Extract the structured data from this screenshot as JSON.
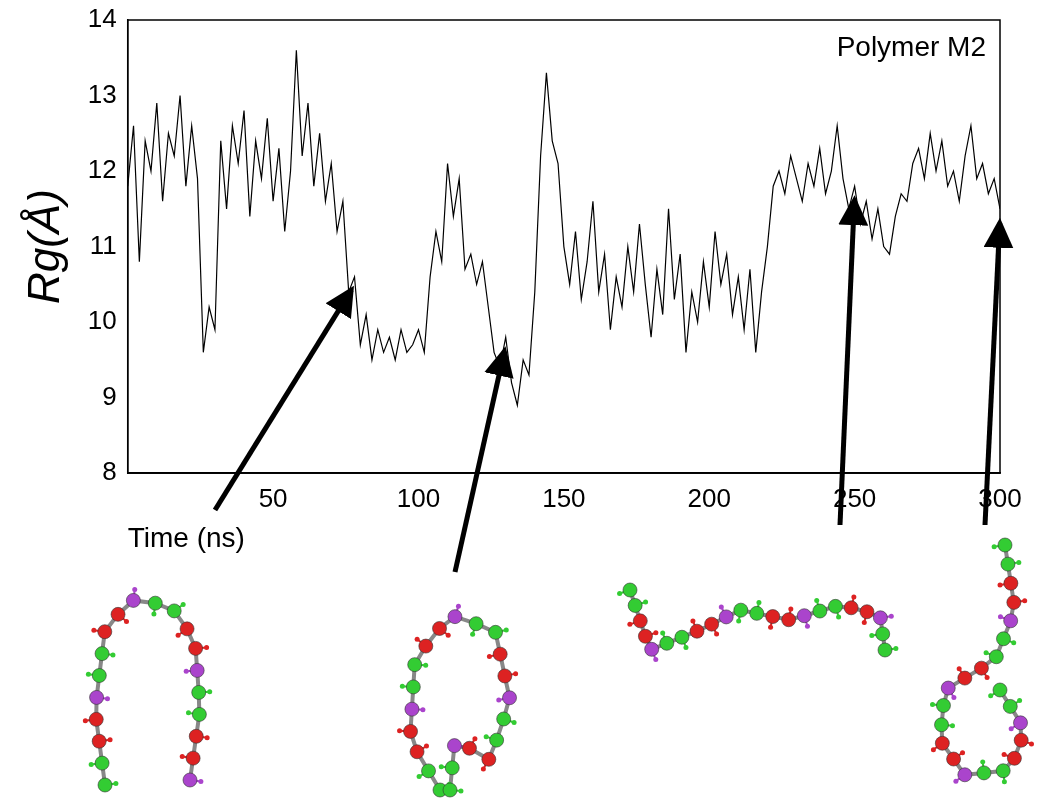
{
  "chart_data": {
    "type": "line",
    "annotation": "Polymer M2",
    "x_label": "Time (ns)",
    "y_label": "Rg(Å)",
    "color": "#000000",
    "grid": false,
    "xlim": [
      0,
      300
    ],
    "xticks": [
      50,
      100,
      150,
      200,
      250,
      300
    ],
    "ylim": [
      8,
      14
    ],
    "yticks": [
      8,
      9,
      10,
      11,
      12,
      13,
      14
    ],
    "x": [
      0,
      2,
      4,
      6,
      8,
      10,
      12,
      14,
      16,
      18,
      20,
      22,
      24,
      26,
      28,
      30,
      32,
      34,
      36,
      38,
      40,
      42,
      44,
      46,
      48,
      50,
      52,
      54,
      56,
      58,
      60,
      62,
      64,
      66,
      68,
      70,
      72,
      74,
      76,
      78,
      80,
      82,
      84,
      86,
      88,
      90,
      92,
      94,
      96,
      98,
      100,
      102,
      104,
      106,
      108,
      110,
      112,
      114,
      116,
      118,
      120,
      122,
      124,
      126,
      128,
      130,
      132,
      134,
      136,
      138,
      140,
      142,
      144,
      146,
      148,
      150,
      152,
      154,
      156,
      158,
      160,
      162,
      164,
      166,
      168,
      170,
      172,
      174,
      176,
      178,
      180,
      182,
      184,
      186,
      188,
      190,
      192,
      194,
      196,
      198,
      200,
      202,
      204,
      206,
      208,
      210,
      212,
      214,
      216,
      218,
      220,
      222,
      224,
      226,
      228,
      230,
      232,
      234,
      236,
      238,
      240,
      242,
      244,
      246,
      248,
      250,
      252,
      254,
      256,
      258,
      260,
      262,
      264,
      266,
      268,
      270,
      272,
      274,
      276,
      278,
      280,
      282,
      284,
      286,
      288,
      290,
      292,
      294,
      296,
      298,
      300
    ],
    "values": [
      11.8,
      12.6,
      10.8,
      12.4,
      12.0,
      12.9,
      11.6,
      12.5,
      12.2,
      13.0,
      11.8,
      12.6,
      11.9,
      9.6,
      10.2,
      9.9,
      12.4,
      11.5,
      12.6,
      12.1,
      12.8,
      11.4,
      12.4,
      11.9,
      12.7,
      11.6,
      12.3,
      11.2,
      12.0,
      13.6,
      12.2,
      12.9,
      11.8,
      12.5,
      11.6,
      12.1,
      11.2,
      11.6,
      10.4,
      10.6,
      9.7,
      10.1,
      9.5,
      9.9,
      9.6,
      9.8,
      9.5,
      9.9,
      9.6,
      9.7,
      9.9,
      9.6,
      10.6,
      11.2,
      10.8,
      12.1,
      11.4,
      11.9,
      10.7,
      10.9,
      10.5,
      10.8,
      10.2,
      9.6,
      9.4,
      9.8,
      9.2,
      8.9,
      9.5,
      9.3,
      10.4,
      12.2,
      13.3,
      12.4,
      12.1,
      11.0,
      10.5,
      11.2,
      10.3,
      10.8,
      11.6,
      10.4,
      10.9,
      9.9,
      10.6,
      10.2,
      11.0,
      10.4,
      11.3,
      10.5,
      9.8,
      10.7,
      10.1,
      11.5,
      10.3,
      10.9,
      9.6,
      10.4,
      10.0,
      10.8,
      10.2,
      11.2,
      10.5,
      10.9,
      10.1,
      10.6,
      9.9,
      10.7,
      9.6,
      10.4,
      11.0,
      11.8,
      12.0,
      11.7,
      12.2,
      11.9,
      11.6,
      12.1,
      11.8,
      12.3,
      11.7,
      12.0,
      12.6,
      11.9,
      11.5,
      11.8,
      11.3,
      11.6,
      11.1,
      11.5,
      11.0,
      10.9,
      11.4,
      11.7,
      11.6,
      12.1,
      12.3,
      11.9,
      12.5,
      12.0,
      12.4,
      11.8,
      12.0,
      11.6,
      12.2,
      12.6,
      11.9,
      12.1,
      11.7,
      11.9,
      11.5
    ]
  }
}
